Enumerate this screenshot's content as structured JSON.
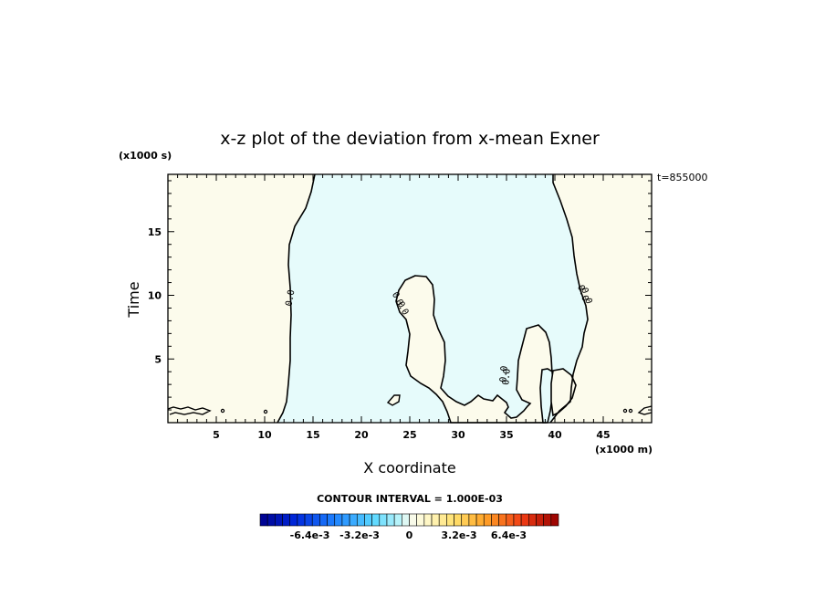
{
  "chart_data": {
    "type": "contour",
    "title": "x-z plot of the deviation from x-mean Exner",
    "xlabel": "X coordinate",
    "ylabel": "Time",
    "x_unit": "(x1000 m)",
    "y_unit": "(x1000 s)",
    "time_label": "t=855000",
    "xlim": [
      0,
      50
    ],
    "ylim": [
      0,
      19.5
    ],
    "x_ticks": [
      5,
      10,
      15,
      20,
      25,
      30,
      35,
      40,
      45
    ],
    "y_ticks": [
      5,
      10,
      15
    ],
    "contour_interval_label": "CONTOUR INTERVAL = 1.000E-03",
    "contour_levels": [
      0.0
    ],
    "contour_labels": [
      "0.0",
      "0.0",
      "0.0",
      "0.0",
      "0.0",
      "0.0",
      "0.0"
    ],
    "regions": [
      {
        "name": "left-positive",
        "sign": "positive",
        "x_range": [
          0,
          13
        ]
      },
      {
        "name": "center-negative",
        "sign": "negative",
        "x_range": [
          13,
          40
        ]
      },
      {
        "name": "right-positive",
        "sign": "positive",
        "x_range": [
          40,
          50
        ]
      },
      {
        "name": "blob-25",
        "sign": "positive",
        "center": [
          25.5,
          6
        ]
      },
      {
        "name": "blob-38",
        "sign": "positive",
        "center": [
          38.5,
          3.5
        ]
      }
    ],
    "colorbar": {
      "tick_labels": [
        "-6.4e-3",
        "-3.2e-3",
        "0",
        "3.2e-3",
        "6.4e-3"
      ],
      "tick_values": [
        -0.0064,
        -0.0032,
        0,
        0.0032,
        0.0064
      ],
      "range": [
        -0.0096,
        0.0096
      ],
      "n_levels": 40
    },
    "colors": {
      "positive_fill": "#fcfbec",
      "negative_fill": "#e6fbfb",
      "contour_line": "#000000"
    }
  }
}
